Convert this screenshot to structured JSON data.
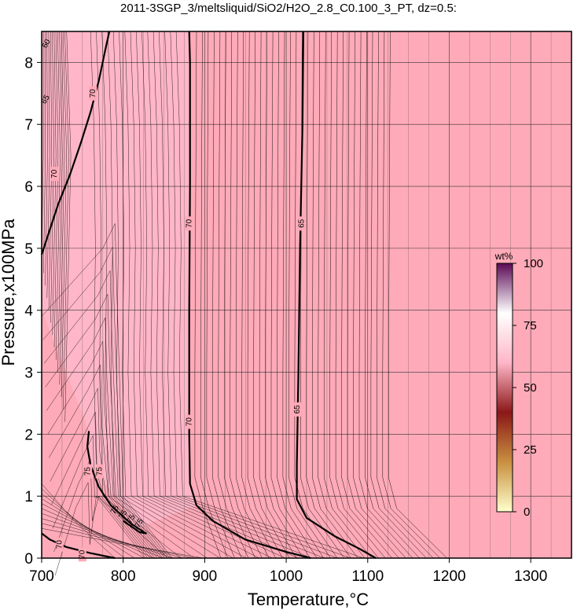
{
  "chart_data": {
    "type": "contour",
    "title": "2011-3SGP_3/meltsliquid/SiO2/H2O_2.8_C0.100_3_PT, dz=0.5:",
    "xlabel": "Temperature,°C",
    "ylabel": "Pressure,x100MPa",
    "xlim": [
      700,
      1350
    ],
    "ylim": [
      0,
      8.5
    ],
    "x_ticks": [
      "700",
      "800",
      "900",
      "1000",
      "1100",
      "1200",
      "1300"
    ],
    "y_ticks": [
      "0",
      "1",
      "2",
      "3",
      "4",
      "5",
      "6",
      "7",
      "8"
    ],
    "x_minor_grid": [
      725,
      750,
      775,
      825,
      850,
      875,
      925,
      950,
      975,
      1025,
      1050,
      1075,
      1125,
      1150,
      1175,
      1225,
      1250,
      1275,
      1325
    ],
    "contour_interval": 0.5,
    "background_color": "#ffaab8",
    "highlight_color": "#ffb6c8",
    "colorbar": {
      "unit": "wt%",
      "ticks": [
        "0",
        "25",
        "50",
        "75",
        "100"
      ],
      "range": [
        0,
        100
      ],
      "colors": [
        "#ffffcc",
        "#c89040",
        "#8a1818",
        "#ffb6c8",
        "#ffffff",
        "#5a0a55"
      ]
    },
    "major_contours": [
      {
        "level": "70",
        "points": [
          [
            881,
            8.5
          ],
          [
            882,
            8.0
          ],
          [
            882,
            6.0
          ],
          [
            881,
            4.0
          ],
          [
            881,
            2.0
          ],
          [
            882,
            1.2
          ],
          [
            890,
            0.85
          ],
          [
            910,
            0.6
          ],
          [
            950,
            0.3
          ],
          [
            1000,
            0.1
          ],
          [
            1030,
            0
          ]
        ],
        "labels": [
          [
            881,
            5.4
          ],
          [
            881,
            2.2
          ]
        ]
      },
      {
        "level": "65",
        "points": [
          [
            1021,
            8.5
          ],
          [
            1020,
            7.0
          ],
          [
            1017,
            5.0
          ],
          [
            1015,
            3.0
          ],
          [
            1013,
            1.5
          ],
          [
            1013,
            0.95
          ],
          [
            1025,
            0.65
          ],
          [
            1060,
            0.35
          ],
          [
            1090,
            0.15
          ],
          [
            1110,
            0
          ]
        ],
        "labels": [
          [
            1019,
            5.4
          ],
          [
            1014,
            2.4
          ]
        ]
      },
      {
        "level": "75",
        "points": [
          [
            758,
            2.05
          ],
          [
            756,
            1.8
          ],
          [
            760,
            1.5
          ],
          [
            770,
            1.15
          ],
          [
            785,
            0.85
          ],
          [
            810,
            0.55
          ],
          [
            828,
            0.4
          ],
          [
            820,
            0.42
          ],
          [
            800,
            0.6
          ]
        ],
        "labels": [
          [
            757,
            1.4
          ],
          [
            771,
            1.4
          ]
        ]
      },
      {
        "level": "70",
        "points": [
          [
            783,
            8.5
          ],
          [
            778,
            8.2
          ],
          [
            770,
            7.7
          ],
          [
            760,
            7.2
          ],
          [
            748,
            6.7
          ],
          [
            735,
            6.2
          ],
          [
            720,
            5.7
          ],
          [
            705,
            5.1
          ],
          [
            700,
            4.9
          ]
        ],
        "labels": [
          [
            763,
            7.5
          ],
          [
            716,
            6.2
          ]
        ]
      },
      {
        "level": "70",
        "points": [
          [
            700,
            0.4
          ],
          [
            710,
            0.3
          ],
          [
            730,
            0.18
          ],
          [
            760,
            0.08
          ],
          [
            790,
            0
          ]
        ],
        "labels": [
          [
            722,
            0.22
          ],
          [
            750,
            0.06
          ]
        ]
      }
    ],
    "edge_labels": [
      {
        "text": "65",
        "x": 705,
        "y": 7.4
      },
      {
        "text": "60",
        "x": 706,
        "y": 8.3
      }
    ],
    "cluster_labels": [
      {
        "text": "75",
        "x": 790,
        "y": 0.78
      },
      {
        "text": "75",
        "x": 800,
        "y": 0.7
      },
      {
        "text": "75",
        "x": 810,
        "y": 0.63
      },
      {
        "text": "75",
        "x": 820,
        "y": 0.56
      }
    ]
  }
}
